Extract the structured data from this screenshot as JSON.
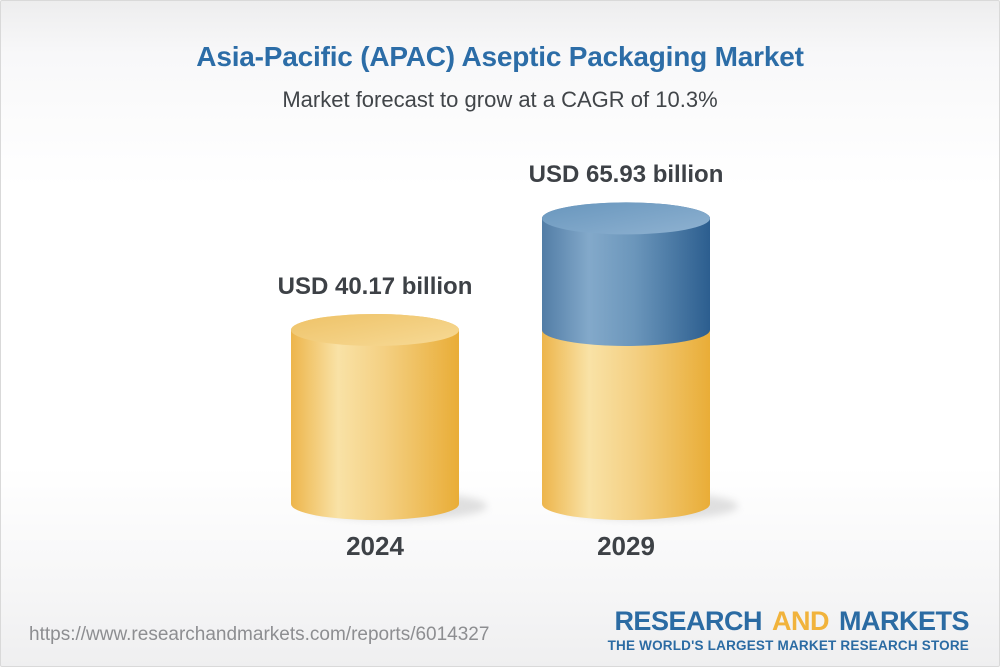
{
  "header": {
    "title": "Asia-Pacific (APAC) Aseptic Packaging Market",
    "subtitle": "Market forecast to grow at a CAGR of 10.3%"
  },
  "chart_data": {
    "type": "bar",
    "variant": "3d-cylinder",
    "title": "Asia-Pacific (APAC) Aseptic Packaging Market",
    "subtitle": "Market forecast to grow at a CAGR of 10.3%",
    "cagr_percent": 10.3,
    "unit": "USD billion",
    "categories": [
      "2024",
      "2029"
    ],
    "values": [
      40.17,
      65.93
    ],
    "xlabel": "",
    "ylabel": "",
    "legend": "none",
    "grid": false,
    "bars": [
      {
        "year": "2024",
        "label": "USD 40.17 billion",
        "value": 40.17,
        "segments": [
          {
            "name": "base",
            "value": 40.17,
            "color": "yellow"
          }
        ]
      },
      {
        "year": "2029",
        "label": "USD 65.93 billion",
        "value": 65.93,
        "segments": [
          {
            "name": "base",
            "value": 40.17,
            "color": "yellow"
          },
          {
            "name": "growth",
            "value": 25.76,
            "color": "blue"
          }
        ]
      }
    ],
    "colors": {
      "yellow_body_edge": "#edb54b",
      "yellow_body_light": "#f9e2a6",
      "yellow_body_dark": "#e9ad37",
      "yellow_top_a": "#eec267",
      "yellow_top_b": "#f7da96",
      "blue_body_edge": "#527da6",
      "blue_body_light": "#83a9ca",
      "blue_body_dark": "#2c5e8f",
      "blue_top_a": "#6896bd",
      "blue_top_b": "#8fb2d1"
    }
  },
  "footer": {
    "url": "https://www.researchandmarkets.com/reports/6014327",
    "logo": {
      "research": "RESEARCH",
      "and": "AND",
      "markets": "MARKETS",
      "tagline": "THE WORLD'S LARGEST MARKET RESEARCH STORE"
    }
  },
  "theme": {
    "title_color": "#2c6da7",
    "subtitle_color": "#414549",
    "label_color": "#3d4146",
    "url_color": "#8d8e91",
    "logo_blue": "#2b6ba3",
    "logo_gold": "#f1b33c"
  }
}
